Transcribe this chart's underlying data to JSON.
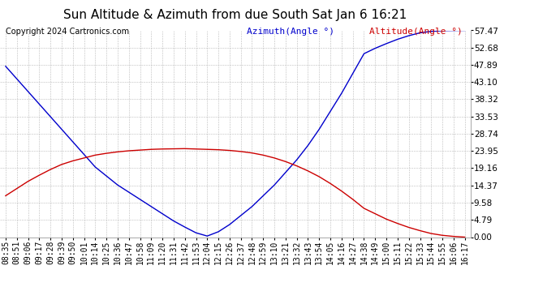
{
  "title": "Sun Altitude & Azimuth from due South Sat Jan 6 16:21",
  "copyright": "Copyright 2024 Cartronics.com",
  "legend_azimuth": "Azimuth(Angle °)",
  "legend_altitude": "Altitude(Angle °)",
  "azimuth_color": "#0000cc",
  "altitude_color": "#cc0000",
  "background_color": "#ffffff",
  "grid_color": "#bbbbbb",
  "yticks": [
    0.0,
    4.79,
    9.58,
    14.37,
    19.16,
    23.95,
    28.74,
    33.53,
    38.32,
    43.1,
    47.89,
    52.68,
    57.47
  ],
  "x_labels": [
    "08:35",
    "08:51",
    "09:06",
    "09:17",
    "09:28",
    "09:39",
    "09:50",
    "10:01",
    "10:14",
    "10:25",
    "10:36",
    "10:47",
    "10:58",
    "11:09",
    "11:20",
    "11:31",
    "11:42",
    "11:53",
    "12:04",
    "12:15",
    "12:26",
    "12:37",
    "12:48",
    "12:59",
    "13:10",
    "13:21",
    "13:32",
    "13:43",
    "13:54",
    "14:05",
    "14:16",
    "14:27",
    "14:38",
    "14:49",
    "15:00",
    "15:11",
    "15:22",
    "15:33",
    "15:44",
    "15:55",
    "16:06",
    "16:17"
  ],
  "azimuth_values": [
    47.5,
    44.0,
    40.5,
    37.0,
    33.5,
    30.0,
    26.5,
    23.0,
    19.5,
    17.0,
    14.5,
    12.5,
    10.5,
    8.5,
    6.5,
    4.5,
    2.8,
    1.2,
    0.3,
    1.5,
    3.5,
    6.0,
    8.5,
    11.5,
    14.5,
    18.0,
    21.5,
    25.5,
    30.0,
    35.0,
    40.0,
    45.5,
    51.0,
    52.5,
    53.8,
    55.0,
    56.0,
    56.8,
    57.2,
    57.4,
    57.45,
    57.47
  ],
  "altitude_values": [
    11.5,
    13.5,
    15.5,
    17.2,
    18.8,
    20.2,
    21.2,
    22.0,
    22.8,
    23.3,
    23.7,
    24.0,
    24.2,
    24.4,
    24.5,
    24.55,
    24.6,
    24.5,
    24.4,
    24.3,
    24.1,
    23.8,
    23.4,
    22.8,
    22.0,
    21.0,
    19.8,
    18.4,
    16.8,
    14.9,
    12.8,
    10.5,
    8.0,
    6.5,
    5.0,
    3.8,
    2.7,
    1.8,
    1.0,
    0.5,
    0.2,
    0.0
  ],
  "ylim": [
    0,
    57.47
  ],
  "title_fontsize": 11,
  "tick_fontsize": 7,
  "legend_fontsize": 8,
  "copyright_fontsize": 7
}
